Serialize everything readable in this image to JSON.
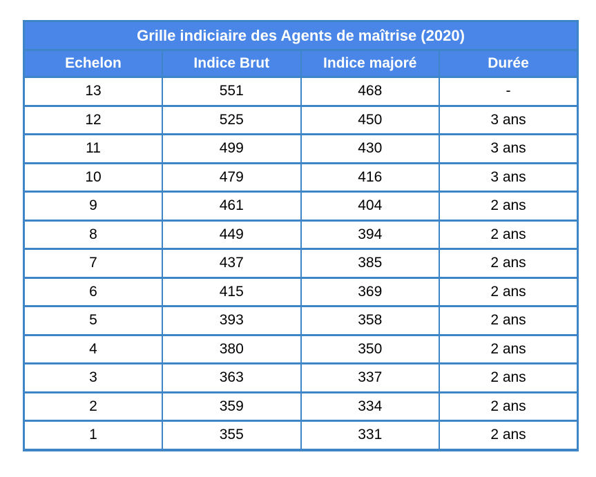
{
  "chart_data": {
    "type": "table",
    "title": "Grille indiciaire des Agents de maîtrise (2020)",
    "columns": [
      "Echelon",
      "Indice Brut",
      "Indice majoré",
      "Durée"
    ],
    "rows": [
      [
        "13",
        "551",
        "468",
        "-"
      ],
      [
        "12",
        "525",
        "450",
        "3 ans"
      ],
      [
        "11",
        "499",
        "430",
        "3 ans"
      ],
      [
        "10",
        "479",
        "416",
        "3 ans"
      ],
      [
        "9",
        "461",
        "404",
        "2 ans"
      ],
      [
        "8",
        "449",
        "394",
        "2 ans"
      ],
      [
        "7",
        "437",
        "385",
        "2 ans"
      ],
      [
        "6",
        "415",
        "369",
        "2 ans"
      ],
      [
        "5",
        "393",
        "358",
        "2 ans"
      ],
      [
        "4",
        "380",
        "350",
        "2 ans"
      ],
      [
        "3",
        "363",
        "337",
        "2 ans"
      ],
      [
        "2",
        "359",
        "334",
        "2 ans"
      ],
      [
        "1",
        "355",
        "331",
        "2 ans"
      ]
    ],
    "layout": {
      "legend": "none",
      "grid": "all-borders",
      "column_alignment": "center"
    }
  },
  "colors": {
    "header_fill": "#4a86e8",
    "border": "#3d85c6",
    "header_text": "#ffffff",
    "body_text": "#000000",
    "page_background": "#ffffff"
  }
}
